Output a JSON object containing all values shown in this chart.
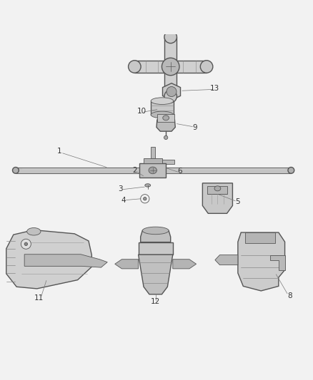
{
  "background_color": "#f2f2f2",
  "line_color": "#555555",
  "label_color": "#333333",
  "figsize": [
    4.38,
    5.33
  ],
  "dpi": 100
}
